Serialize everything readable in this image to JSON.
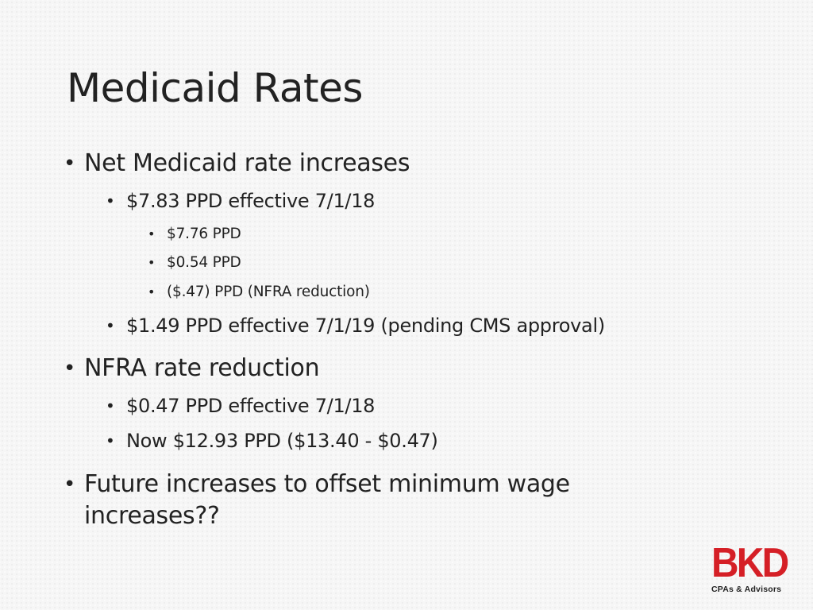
{
  "slide": {
    "title": "Medicaid Rates",
    "bullets": [
      {
        "text": "Net Medicaid rate increases",
        "children": [
          {
            "text": "$7.83 PPD effective 7/1/18",
            "children": [
              {
                "text": "$7.76 PPD"
              },
              {
                "text": "$0.54 PPD"
              },
              {
                "text": "($.47) PPD (NFRA reduction)"
              }
            ]
          },
          {
            "text": "$1.49 PPD effective 7/1/19 (pending CMS approval)"
          }
        ]
      },
      {
        "text": "NFRA rate reduction",
        "children": [
          {
            "text": "$0.47 PPD effective 7/1/18"
          },
          {
            "text": "Now $12.93 PPD ($13.40 - $0.47)"
          }
        ]
      },
      {
        "text": "Future increases to offset minimum wage increases??"
      }
    ]
  },
  "logo": {
    "brand": "BKD",
    "tagline": "CPAs & Advisors",
    "brand_color": "#d51f26"
  }
}
